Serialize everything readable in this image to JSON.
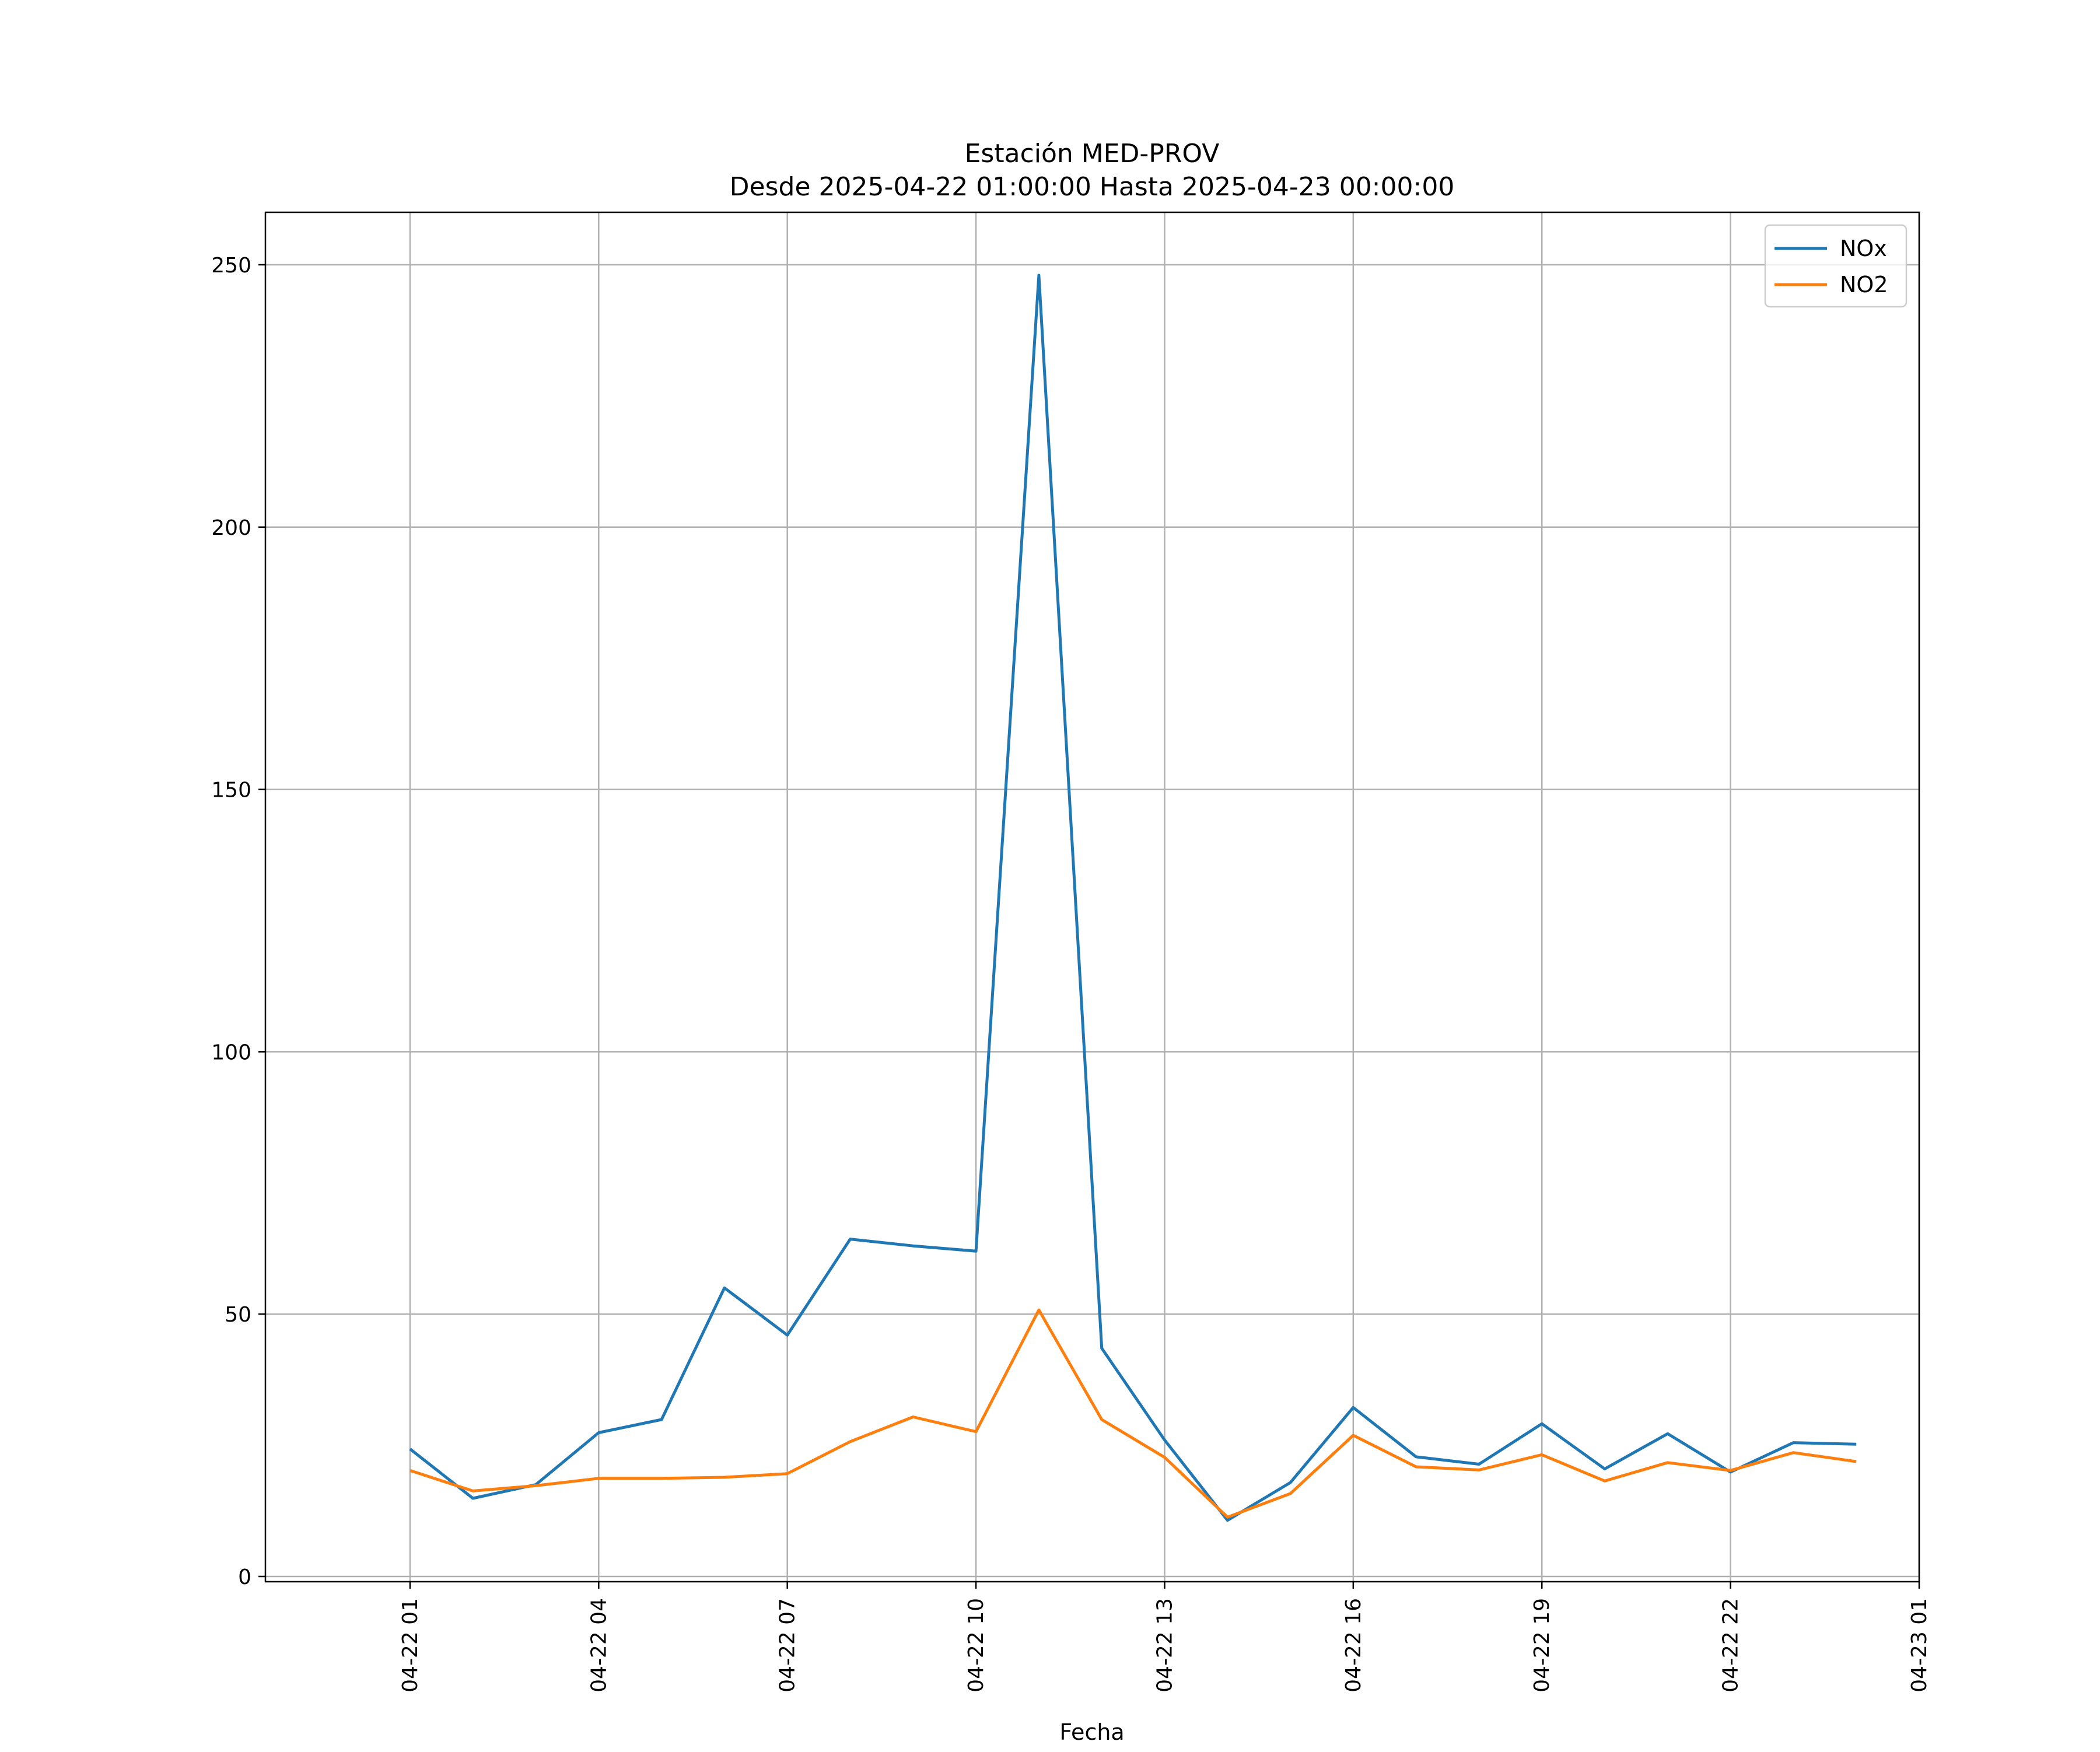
{
  "chart_data": {
    "type": "line",
    "title": "Estación MED-PROV",
    "subtitle": "Desde 2025-04-22 01:00:00 Hasta 2025-04-23 00:00:00",
    "xlabel": "Fecha",
    "ylabel": "",
    "x": [
      "2025-04-22 01:00",
      "2025-04-22 02:00",
      "2025-04-22 03:00",
      "2025-04-22 04:00",
      "2025-04-22 05:00",
      "2025-04-22 06:00",
      "2025-04-22 07:00",
      "2025-04-22 08:00",
      "2025-04-22 09:00",
      "2025-04-22 10:00",
      "2025-04-22 11:00",
      "2025-04-22 12:00",
      "2025-04-22 13:00",
      "2025-04-22 14:00",
      "2025-04-22 15:00",
      "2025-04-22 16:00",
      "2025-04-22 17:00",
      "2025-04-22 18:00",
      "2025-04-22 19:00",
      "2025-04-22 20:00",
      "2025-04-22 21:00",
      "2025-04-22 22:00",
      "2025-04-22 23:00",
      "2025-04-23 00:00"
    ],
    "xlim": [
      "2025-04-21 22:42",
      "2025-04-23 01:00"
    ],
    "xticks": [
      {
        "value": "2025-04-22 01:00",
        "label": "04-22 01"
      },
      {
        "value": "2025-04-22 04:00",
        "label": "04-22 04"
      },
      {
        "value": "2025-04-22 07:00",
        "label": "04-22 07"
      },
      {
        "value": "2025-04-22 10:00",
        "label": "04-22 10"
      },
      {
        "value": "2025-04-22 13:00",
        "label": "04-22 13"
      },
      {
        "value": "2025-04-22 16:00",
        "label": "04-22 16"
      },
      {
        "value": "2025-04-22 19:00",
        "label": "04-22 19"
      },
      {
        "value": "2025-04-22 22:00",
        "label": "04-22 22"
      },
      {
        "value": "2025-04-23 01:00",
        "label": "04-23 01"
      }
    ],
    "ylim": [
      -1,
      260
    ],
    "yticks": [
      0,
      50,
      100,
      150,
      200,
      250
    ],
    "grid": true,
    "legend_position": "top-right",
    "series": [
      {
        "name": "NOx",
        "color": "#1f77b4",
        "values": [
          24.3,
          14.9,
          17.5,
          27.4,
          29.9,
          55.0,
          46.0,
          64.3,
          63.0,
          62.0,
          248.0,
          43.5,
          26.0,
          10.7,
          17.9,
          32.2,
          22.8,
          21.4,
          29.1,
          20.5,
          27.2,
          19.9,
          25.5,
          25.2
        ]
      },
      {
        "name": "NO2",
        "color": "#ff7f0e",
        "values": [
          20.2,
          16.3,
          17.3,
          18.7,
          18.7,
          18.9,
          19.6,
          25.7,
          30.4,
          27.6,
          50.8,
          29.9,
          22.7,
          11.3,
          15.8,
          26.9,
          20.9,
          20.3,
          23.2,
          18.2,
          21.7,
          20.2,
          23.6,
          21.9
        ]
      }
    ]
  }
}
